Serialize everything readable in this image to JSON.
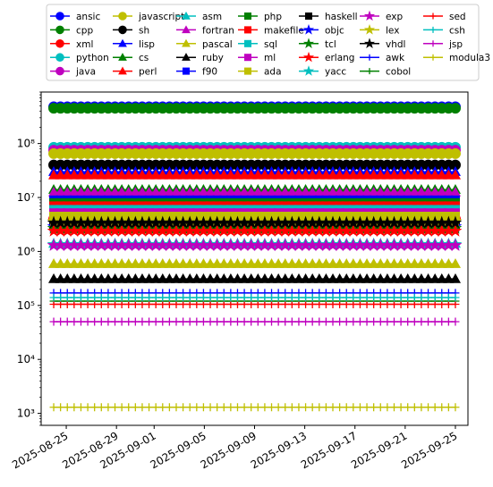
{
  "chart_data": {
    "type": "line",
    "title": "",
    "xlabel": "",
    "ylabel": "",
    "yscale": "log",
    "xlim": [
      "2025-08-23",
      "2025-09-26"
    ],
    "ylim": [
      600,
      900000000
    ],
    "x_ticks": [
      "2025-08-25",
      "2025-08-29",
      "2025-09-01",
      "2025-09-05",
      "2025-09-09",
      "2025-09-13",
      "2025-09-17",
      "2025-09-21",
      "2025-09-25"
    ],
    "x_start": "2025-08-24",
    "x_end": "2025-09-25",
    "points_per_series": 60,
    "y_ticks": [
      {
        "value": 1000,
        "label": "10³"
      },
      {
        "value": 10000,
        "label": "10⁴"
      },
      {
        "value": 100000,
        "label": "10⁵"
      },
      {
        "value": 1000000,
        "label": "10⁶"
      },
      {
        "value": 10000000,
        "label": "10⁷"
      },
      {
        "value": 100000000,
        "label": "10⁸"
      }
    ],
    "legend_position": "top",
    "legend_columns": 7,
    "series": [
      {
        "name": "ansic",
        "color": "#0000ff",
        "marker": "circle",
        "value": 480000000
      },
      {
        "name": "cpp",
        "color": "#008000",
        "marker": "circle",
        "value": 450000000
      },
      {
        "name": "xml",
        "color": "#ff0000",
        "marker": "circle",
        "value": 4000000
      },
      {
        "name": "python",
        "color": "#00bfbf",
        "marker": "circle",
        "value": 85000000
      },
      {
        "name": "java",
        "color": "#bf00bf",
        "marker": "circle",
        "value": 75000000
      },
      {
        "name": "javascript",
        "color": "#bfbf00",
        "marker": "circle",
        "value": 65000000
      },
      {
        "name": "sh",
        "color": "#000000",
        "marker": "circle",
        "value": 40000000
      },
      {
        "name": "lisp",
        "color": "#0000ff",
        "marker": "triangle",
        "value": 30000000
      },
      {
        "name": "cs",
        "color": "#008000",
        "marker": "triangle",
        "value": 14000000
      },
      {
        "name": "perl",
        "color": "#ff0000",
        "marker": "triangle",
        "value": 26000000
      },
      {
        "name": "asm",
        "color": "#00bfbf",
        "marker": "triangle",
        "value": 1400000
      },
      {
        "name": "fortran",
        "color": "#bf00bf",
        "marker": "triangle",
        "value": 12500000
      },
      {
        "name": "pascal",
        "color": "#bfbf00",
        "marker": "triangle",
        "value": 590000
      },
      {
        "name": "ruby",
        "color": "#000000",
        "marker": "triangle",
        "value": 310000
      },
      {
        "name": "f90",
        "color": "#0000ff",
        "marker": "square",
        "value": 9000000
      },
      {
        "name": "php",
        "color": "#008000",
        "marker": "square",
        "value": 8000000
      },
      {
        "name": "makefile",
        "color": "#ff0000",
        "marker": "square",
        "value": 7000000
      },
      {
        "name": "sql",
        "color": "#00bfbf",
        "marker": "square",
        "value": 6000000
      },
      {
        "name": "ml",
        "color": "#bf00bf",
        "marker": "square",
        "value": 5200000
      },
      {
        "name": "ada",
        "color": "#bfbf00",
        "marker": "square",
        "value": 4500000
      },
      {
        "name": "haskell",
        "color": "#000000",
        "marker": "square",
        "value": 3200000
      },
      {
        "name": "objc",
        "color": "#0000ff",
        "marker": "star",
        "value": 2900000
      },
      {
        "name": "tcl",
        "color": "#008000",
        "marker": "star",
        "value": 2700000
      },
      {
        "name": "erlang",
        "color": "#ff0000",
        "marker": "star",
        "value": 2400000
      },
      {
        "name": "yacc",
        "color": "#00bfbf",
        "marker": "star",
        "value": 1350000
      },
      {
        "name": "exp",
        "color": "#bf00bf",
        "marker": "star",
        "value": 1300000
      },
      {
        "name": "lex",
        "color": "#bfbf00",
        "marker": "star",
        "value": 3600000
      },
      {
        "name": "vhdl",
        "color": "#000000",
        "marker": "star",
        "value": 3400000
      },
      {
        "name": "awk",
        "color": "#0000ff",
        "marker": "plus",
        "value": 170000
      },
      {
        "name": "cobol",
        "color": "#008000",
        "marker": "plus",
        "value": 120000
      },
      {
        "name": "sed",
        "color": "#ff0000",
        "marker": "plus",
        "value": 105000
      },
      {
        "name": "csh",
        "color": "#00bfbf",
        "marker": "plus",
        "value": 140000
      },
      {
        "name": "jsp",
        "color": "#bf00bf",
        "marker": "plus",
        "value": 50000
      },
      {
        "name": "modula3",
        "color": "#bfbf00",
        "marker": "plus",
        "value": 1300
      }
    ]
  }
}
